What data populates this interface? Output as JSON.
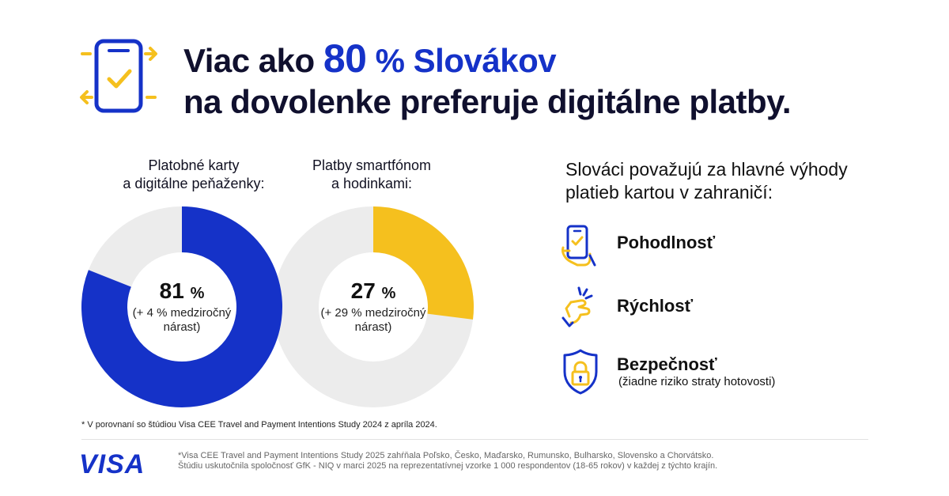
{
  "colors": {
    "blue": "#1532c8",
    "yellow": "#f5c01e",
    "track": "#ececec",
    "dark": "#10102e"
  },
  "header": {
    "line1_prefix": "Viac ako ",
    "line1_number": "80",
    "line1_suffix": " % Slovákov",
    "line2": "na dovolenke preferuje digitálne platby.",
    "icon": "phone-check-arrows-icon"
  },
  "chart_data": {
    "type": "pie",
    "charts": [
      {
        "label_lines": [
          "Platobné karty",
          "a digitálne peňaženky:"
        ],
        "value": 81,
        "display_value": "81",
        "unit": "%",
        "sub_lines": [
          "(+ 4 % medziročný",
          "nárast)"
        ],
        "color": "#1532c8"
      },
      {
        "label_lines": [
          "Platby smartfónom",
          "a hodinkami:"
        ],
        "value": 27,
        "display_value": "27",
        "unit": "%",
        "sub_lines": [
          "(+ 29 % medziročný",
          "nárast)"
        ],
        "color": "#f5c01e"
      }
    ]
  },
  "footnote": "* V porovnaní so štúdiou Visa CEE Travel and Payment Intentions Study 2024 z apríla 2024.",
  "benefits": {
    "title_lines": [
      "Slováci považujú za hlavné výhody",
      "platieb kartou v zahraničí:"
    ],
    "items": [
      {
        "label": "Pohodlnosť",
        "sub": "",
        "icon": "hand-phone-icon"
      },
      {
        "label": "Rýchlosť",
        "sub": "",
        "icon": "snap-fingers-icon"
      },
      {
        "label": "Bezpečnosť",
        "sub": "(žiadne riziko straty hotovosti)",
        "icon": "shield-lock-icon"
      }
    ]
  },
  "brand": {
    "logo_text": "VISA"
  },
  "source": {
    "line1": "*Visa CEE Travel and Payment Intentions Study 2025 zahŕňala Poľsko, Česko, Maďarsko, Rumunsko, Bulharsko, Slovensko a Chorvátsko.",
    "line2": "Štúdiu uskutočnila spoločnosť GfK - NIQ v marci 2025 na reprezentatívnej vzorke 1 000 respondentov (18-65 rokov) v každej z týchto krajín."
  }
}
